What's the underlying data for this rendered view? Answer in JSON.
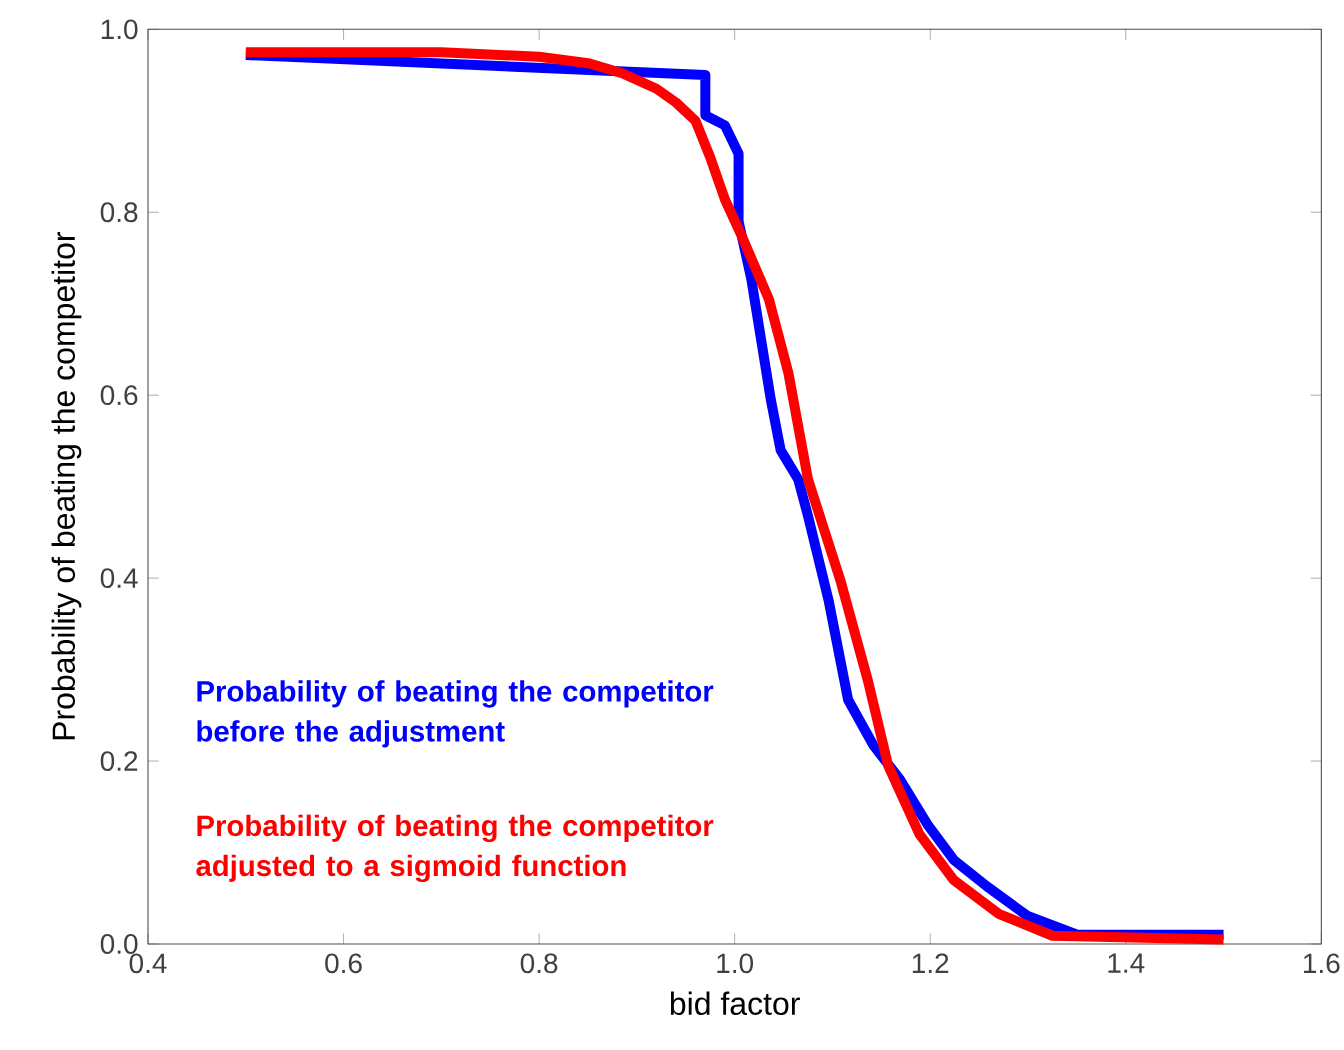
{
  "chart_data": {
    "type": "line",
    "xlabel": "bid factor",
    "ylabel": "Probability of beating the competitor",
    "xlim": [
      0.4,
      1.6
    ],
    "ylim": [
      0.0,
      1.0
    ],
    "xticks": [
      0.4,
      0.6,
      0.8,
      {
        "value": 1.0,
        "label": "1.0"
      },
      1.2,
      1.4,
      1.6
    ],
    "yticks": [
      {
        "value": 0.0,
        "label": "0.0"
      },
      0.2,
      0.4,
      0.6,
      0.8,
      {
        "value": 1.0,
        "label": "1.0"
      }
    ],
    "grid": false,
    "legend": false,
    "marker": "none",
    "line_style": "solid",
    "series": [
      {
        "name": "Probability of beating the competitor before the adjustment",
        "color": "#0000ff",
        "x": [
          0.5,
          0.97,
          0.97,
          0.99,
          1.004,
          1.004,
          1.017,
          1.037,
          1.047,
          1.065,
          1.075,
          1.096,
          1.116,
          1.142,
          1.169,
          1.197,
          1.224,
          1.258,
          1.299,
          1.351,
          1.5
        ],
        "values": [
          0.972,
          0.95,
          0.906,
          0.895,
          0.864,
          0.79,
          0.727,
          0.595,
          0.54,
          0.508,
          0.468,
          0.376,
          0.267,
          0.217,
          0.18,
          0.131,
          0.092,
          0.063,
          0.031,
          0.01,
          0.01
        ]
      },
      {
        "name": "Probability of beating the competitor adjusted to a sigmoid function",
        "color": "#ff0000",
        "x": [
          0.5,
          0.7,
          0.8,
          0.85,
          0.885,
          0.92,
          0.94,
          0.96,
          0.975,
          0.99,
          1.006,
          1.035,
          1.055,
          1.075,
          1.108,
          1.136,
          1.157,
          1.189,
          1.224,
          1.27,
          1.325,
          1.5
        ],
        "values": [
          0.975,
          0.975,
          0.97,
          0.963,
          0.952,
          0.935,
          0.92,
          0.9,
          0.86,
          0.814,
          0.777,
          0.705,
          0.624,
          0.508,
          0.398,
          0.289,
          0.195,
          0.12,
          0.07,
          0.033,
          0.009,
          0.005
        ]
      }
    ]
  }
}
